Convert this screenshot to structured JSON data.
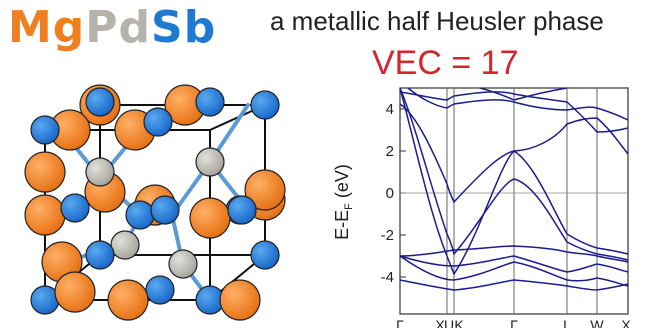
{
  "header": {
    "formula": [
      {
        "text": "Mg",
        "color": "#f07f1f"
      },
      {
        "text": "Pd",
        "color": "#b4b4ac"
      },
      {
        "text": "Sb",
        "color": "#1f78d2"
      }
    ],
    "subtitle": "a metallic half Heusler phase",
    "vec_label": "VEC = 17",
    "vec_color": "#d0262c"
  },
  "crystal": {
    "atom_colors": {
      "Mg": "#f07f1f",
      "Pd": "#c2c2bb",
      "Sb": "#1f78d2"
    },
    "bond_color": "#5b9bd5"
  },
  "band_plot": {
    "ylabel": "E-E",
    "ylabel_sub": "F",
    "ylabel_unit": " (eV)",
    "yticks": [
      "4",
      "2",
      "0",
      "-2",
      "-4"
    ],
    "kpoints": [
      "Γ",
      "X",
      "U",
      "K",
      "Γ",
      "L",
      "W",
      "X"
    ],
    "line_color": "#1c1c8c"
  }
}
